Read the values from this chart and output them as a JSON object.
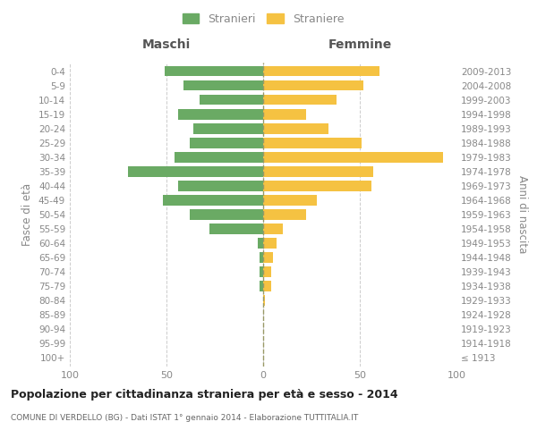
{
  "age_groups": [
    "100+",
    "95-99",
    "90-94",
    "85-89",
    "80-84",
    "75-79",
    "70-74",
    "65-69",
    "60-64",
    "55-59",
    "50-54",
    "45-49",
    "40-44",
    "35-39",
    "30-34",
    "25-29",
    "20-24",
    "15-19",
    "10-14",
    "5-9",
    "0-4"
  ],
  "birth_years": [
    "≤ 1913",
    "1914-1918",
    "1919-1923",
    "1924-1928",
    "1929-1933",
    "1934-1938",
    "1939-1943",
    "1944-1948",
    "1949-1953",
    "1954-1958",
    "1959-1963",
    "1964-1968",
    "1969-1973",
    "1974-1978",
    "1979-1983",
    "1984-1988",
    "1989-1993",
    "1994-1998",
    "1999-2003",
    "2004-2008",
    "2009-2013"
  ],
  "maschi": [
    0,
    0,
    0,
    0,
    0,
    2,
    2,
    2,
    3,
    28,
    38,
    52,
    44,
    70,
    46,
    38,
    36,
    44,
    33,
    41,
    51
  ],
  "femmine": [
    0,
    0,
    0,
    0,
    1,
    4,
    4,
    5,
    7,
    10,
    22,
    28,
    56,
    57,
    93,
    51,
    34,
    22,
    38,
    52,
    60
  ],
  "color_maschi": "#6aaa64",
  "color_femmine": "#f5c242",
  "background_color": "#ffffff",
  "title": "Popolazione per cittadinanza straniera per età e sesso - 2014",
  "subtitle": "COMUNE DI VERDELLO (BG) - Dati ISTAT 1° gennaio 2014 - Elaborazione TUTTITALIA.IT",
  "ylabel_left": "Fasce di età",
  "ylabel_right": "Anni di nascita",
  "header_left": "Maschi",
  "header_right": "Femmine",
  "legend_maschi": "Stranieri",
  "legend_femmine": "Straniere",
  "xlim": 100,
  "grid_color": "#cccccc",
  "center_line_color": "#999966",
  "tick_color": "#999999",
  "label_color": "#888888",
  "title_color": "#222222",
  "subtitle_color": "#666666"
}
